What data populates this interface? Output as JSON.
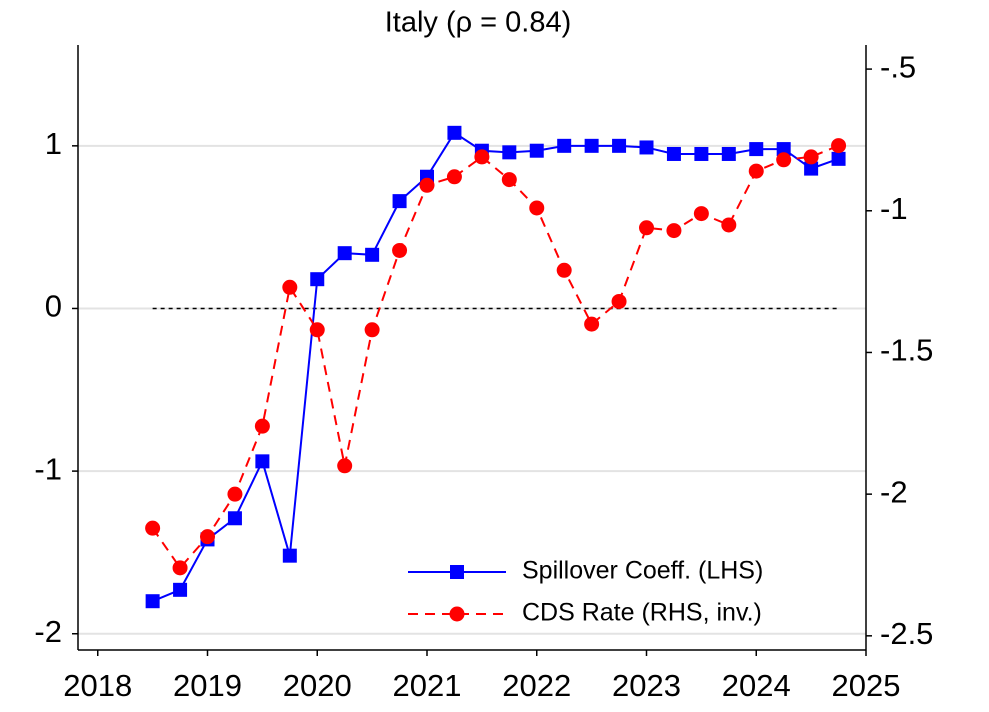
{
  "chart_data": {
    "type": "line",
    "title": "Italy (ρ = 0.84)",
    "x": [
      2018.5,
      2018.75,
      2019,
      2019.25,
      2019.5,
      2019.75,
      2020,
      2020.25,
      2020.5,
      2020.75,
      2021,
      2021.25,
      2021.5,
      2021.75,
      2022,
      2022.25,
      2022.5,
      2022.75,
      2023,
      2023.25,
      2023.5,
      2023.75,
      2024,
      2024.25,
      2024.5,
      2024.75
    ],
    "series": [
      {
        "name": "Spillover Coeff. (LHS)",
        "color": "#0000ff",
        "marker": "square",
        "dash": false,
        "values": [
          -1.8,
          -1.73,
          -1.42,
          -1.29,
          -0.94,
          -1.52,
          0.18,
          0.34,
          0.33,
          0.66,
          0.81,
          1.08,
          0.97,
          0.96,
          0.97,
          1.0,
          1.0,
          1.0,
          0.99,
          0.95,
          0.95,
          0.95,
          0.98,
          0.98,
          0.86,
          0.92
        ]
      },
      {
        "name": "CDS Rate (RHS, inv.)",
        "color": "#ff0000",
        "marker": "circle",
        "dash": true,
        "axis": "y2",
        "values": [
          -2.12,
          -2.26,
          -2.15,
          -2.0,
          -1.76,
          -1.27,
          -1.42,
          -1.9,
          -1.42,
          -1.14,
          -0.91,
          -0.88,
          -0.81,
          -0.89,
          -0.99,
          -1.21,
          -1.4,
          -1.32,
          -1.06,
          -1.07,
          -1.01,
          -1.05,
          -0.86,
          -0.82,
          -0.81,
          -0.77
        ]
      }
    ],
    "xlim": [
      2017.82,
      2025.0
    ],
    "xticks": [
      2018,
      2019,
      2020,
      2021,
      2022,
      2023,
      2024,
      2025
    ],
    "ylim": [
      -2.1,
      1.62
    ],
    "yticks": [
      -2,
      -1,
      0,
      1
    ],
    "y2lim": [
      -2.55,
      -0.415
    ],
    "y2_inverted": true,
    "y2ticks": [
      {
        "value": -0.5,
        "label": "-.5"
      },
      -1,
      -1.5,
      -2,
      -2.5
    ],
    "reference_line": 0,
    "grid": true,
    "legend": "lower right"
  }
}
